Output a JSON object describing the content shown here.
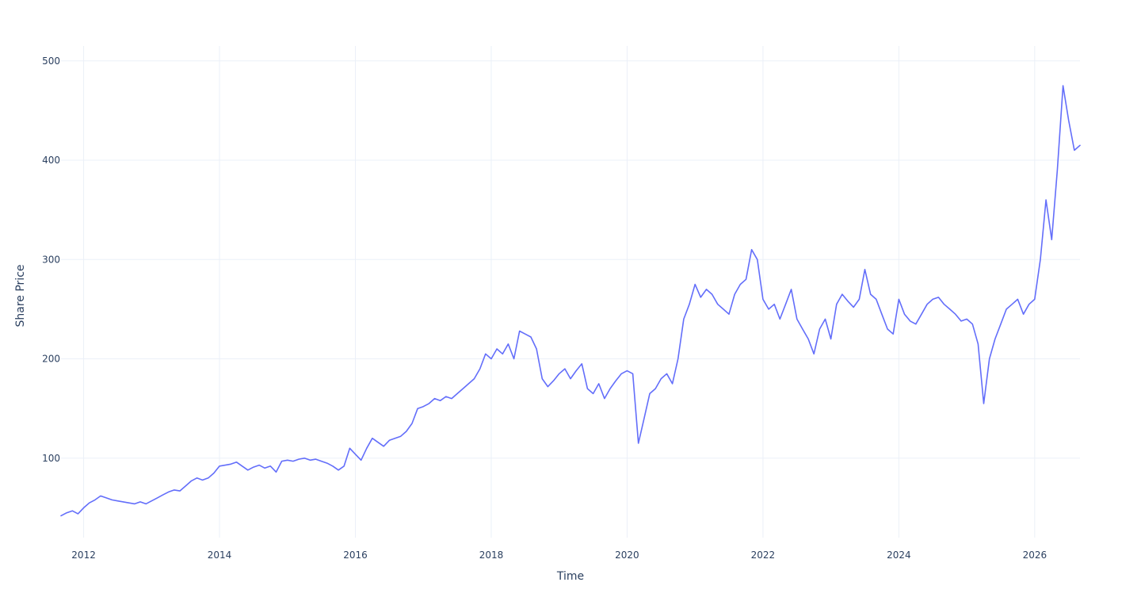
{
  "chart_data": {
    "type": "line",
    "title": "",
    "xlabel": "Time",
    "ylabel": "Share Price",
    "x_tick_labels": [
      "2012",
      "2014",
      "2016",
      "2018",
      "2020",
      "2022",
      "2024",
      "2026"
    ],
    "y_tick_labels": [
      "100",
      "200",
      "300",
      "400",
      "500"
    ],
    "xlim": [
      "2011-09",
      "2026-09"
    ],
    "ylim": [
      20,
      515
    ],
    "grid": true,
    "legend": "none",
    "colors": {
      "line": "#636efa",
      "grid": "#ebf0f8",
      "text": "#2a3f5f",
      "background": "#ffffff"
    },
    "series": [
      {
        "x": [
          "2011-09",
          "2011-10",
          "2011-11",
          "2011-12",
          "2012-01",
          "2012-02",
          "2012-03",
          "2012-04",
          "2012-05",
          "2012-06",
          "2012-07",
          "2012-08",
          "2012-09",
          "2012-10",
          "2012-11",
          "2012-12",
          "2013-01",
          "2013-02",
          "2013-03",
          "2013-04",
          "2013-05",
          "2013-06",
          "2013-07",
          "2013-08",
          "2013-09",
          "2013-10",
          "2013-11",
          "2013-12",
          "2014-01",
          "2014-02",
          "2014-03",
          "2014-04",
          "2014-05",
          "2014-06",
          "2014-07",
          "2014-08",
          "2014-09",
          "2014-10",
          "2014-11",
          "2014-12",
          "2015-01",
          "2015-02",
          "2015-03",
          "2015-04",
          "2015-05",
          "2015-06",
          "2015-07",
          "2015-08",
          "2015-09",
          "2015-10",
          "2015-11",
          "2015-12",
          "2016-01",
          "2016-02",
          "2016-03",
          "2016-04",
          "2016-05",
          "2016-06",
          "2016-07",
          "2016-08",
          "2016-09",
          "2016-10",
          "2016-11",
          "2016-12",
          "2017-01",
          "2017-02",
          "2017-03",
          "2017-04",
          "2017-05",
          "2017-06",
          "2017-07",
          "2017-08",
          "2017-09",
          "2017-10",
          "2017-11",
          "2017-12",
          "2018-01",
          "2018-02",
          "2018-03",
          "2018-04",
          "2018-05",
          "2018-06",
          "2018-07",
          "2018-08",
          "2018-09",
          "2018-10",
          "2018-11",
          "2018-12",
          "2019-01",
          "2019-02",
          "2019-03",
          "2019-04",
          "2019-05",
          "2019-06",
          "2019-07",
          "2019-08",
          "2019-09",
          "2019-10",
          "2019-11",
          "2019-12",
          "2020-01",
          "2020-02",
          "2020-03",
          "2020-04",
          "2020-05",
          "2020-06",
          "2020-07",
          "2020-08",
          "2020-09",
          "2020-10",
          "2020-11",
          "2020-12",
          "2021-01",
          "2021-02",
          "2021-03",
          "2021-04",
          "2021-05",
          "2021-06",
          "2021-07",
          "2021-08",
          "2021-09",
          "2021-10",
          "2021-11",
          "2021-12",
          "2022-01",
          "2022-02",
          "2022-03",
          "2022-04",
          "2022-05",
          "2022-06",
          "2022-07",
          "2022-08",
          "2022-09",
          "2022-10",
          "2022-11",
          "2022-12",
          "2023-01",
          "2023-02",
          "2023-03",
          "2023-04",
          "2023-05",
          "2023-06",
          "2023-07",
          "2023-08",
          "2023-09",
          "2023-10",
          "2023-11",
          "2023-12",
          "2024-01",
          "2024-02",
          "2024-03",
          "2024-04",
          "2024-05",
          "2024-06",
          "2024-07",
          "2024-08",
          "2024-09",
          "2024-10",
          "2024-11",
          "2024-12",
          "2025-01",
          "2025-02",
          "2025-03",
          "2025-04",
          "2025-05",
          "2025-06",
          "2025-07",
          "2025-08",
          "2025-09",
          "2025-10",
          "2025-11",
          "2025-12",
          "2026-01",
          "2026-02",
          "2026-03",
          "2026-04",
          "2026-05",
          "2026-06",
          "2026-07",
          "2026-08",
          "2026-09"
        ],
        "y": [
          42,
          45,
          47,
          44,
          50,
          55,
          58,
          62,
          60,
          58,
          57,
          56,
          55,
          54,
          56,
          54,
          57,
          60,
          63,
          66,
          68,
          67,
          72,
          77,
          80,
          78,
          80,
          85,
          92,
          93,
          94,
          96,
          92,
          88,
          91,
          93,
          90,
          92,
          86,
          97,
          98,
          97,
          99,
          100,
          98,
          99,
          97,
          95,
          92,
          88,
          92,
          110,
          104,
          98,
          110,
          120,
          116,
          112,
          118,
          120,
          122,
          127,
          135,
          150,
          152,
          155,
          160,
          158,
          162,
          160,
          165,
          170,
          175,
          180,
          190,
          205,
          200,
          210,
          205,
          215,
          200,
          228,
          225,
          222,
          210,
          180,
          172,
          178,
          185,
          190,
          180,
          188,
          195,
          170,
          165,
          175,
          160,
          170,
          178,
          185,
          188,
          185,
          115,
          140,
          165,
          170,
          180,
          185,
          175,
          200,
          240,
          255,
          275,
          262,
          270,
          265,
          255,
          250,
          245,
          265,
          275,
          280,
          310,
          300,
          260,
          250,
          255,
          240,
          255,
          270,
          240,
          230,
          220,
          205,
          230,
          240,
          220,
          255,
          265,
          258,
          252,
          260,
          290,
          265,
          260,
          245,
          230,
          225,
          260,
          245,
          238,
          235,
          245,
          255,
          260,
          262,
          255,
          250,
          245,
          238,
          240,
          235,
          215,
          155,
          200,
          220,
          235,
          250,
          255,
          260,
          245,
          255,
          260,
          300,
          360,
          320,
          390,
          475,
          440,
          410,
          415
        ]
      }
    ]
  }
}
